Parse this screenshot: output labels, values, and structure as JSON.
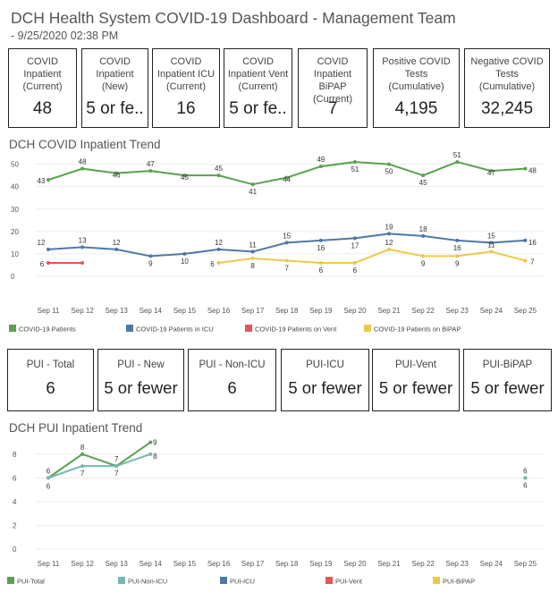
{
  "header": {
    "title": "DCH Health System COVID-19 Dashboard - Management Team",
    "subtitle": " - 9/25/2020 02:38 PM"
  },
  "kpis": [
    {
      "label": "COVID\nInpatient\n(Current)",
      "value": "48"
    },
    {
      "label": "COVID\nInpatient\n(New)",
      "value": "5 or fe.."
    },
    {
      "label": "COVID\nInpatient ICU\n(Current)",
      "value": "16"
    },
    {
      "label": "COVID\nInpatient Vent\n(Current)",
      "value": "5 or fe.."
    },
    {
      "label": "COVID\nInpatient BiPAP\n(Current)",
      "value": "7"
    },
    {
      "label": "Positive COVID\nTests\n(Cumulative)",
      "value": "4,195"
    },
    {
      "label": "Negative COVID\nTests\n(Cumulative)",
      "value": "32,245"
    }
  ],
  "pui_kpis": [
    {
      "label": "PUI - Total",
      "value": "6"
    },
    {
      "label": "PUI - New",
      "value": "5 or fewer"
    },
    {
      "label": "PUI - Non-ICU",
      "value": "6"
    },
    {
      "label": "PUI-ICU",
      "value": "5 or fewer"
    },
    {
      "label": "PUI-Vent",
      "value": "5 or fewer"
    },
    {
      "label": "PUI-BiPAP",
      "value": "5 or fewer"
    }
  ],
  "sections": {
    "covid_trend_title": "DCH COVID Inpatient Trend",
    "pui_trend_title": "DCH PUI Inpatient Trend"
  },
  "colors": {
    "green": "#59a14f",
    "blue": "#4e79a7",
    "red": "#e15759",
    "yellow": "#edc948",
    "teal": "#76b7b2"
  },
  "chart_data": [
    {
      "type": "line",
      "title": "DCH COVID Inpatient Trend",
      "categories": [
        "Sep 11",
        "Sep 12",
        "Sep 13",
        "Sep 14",
        "Sep 15",
        "Sep 16",
        "Sep 17",
        "Sep 18",
        "Sep 19",
        "Sep 20",
        "Sep 21",
        "Sep 22",
        "Sep 23",
        "Sep 24",
        "Sep 25"
      ],
      "yticks": [
        0,
        10,
        20,
        30,
        40,
        50
      ],
      "ylim": [
        0,
        52
      ],
      "series": [
        {
          "name": "COVID-19 Patients",
          "color": "#59a14f",
          "values": [
            43,
            48,
            46,
            47,
            45,
            45,
            41,
            44,
            49,
            51,
            50,
            45,
            51,
            47,
            48
          ],
          "labels": [
            43,
            48,
            46,
            47,
            45,
            45,
            41,
            44,
            49,
            51,
            50,
            45,
            51,
            47,
            48
          ]
        },
        {
          "name": "COVID-19 Patients in ICU",
          "color": "#4e79a7",
          "values": [
            12,
            13,
            12,
            9,
            10,
            12,
            11,
            15,
            16,
            17,
            19,
            18,
            16,
            15,
            16
          ],
          "labels": [
            12,
            13,
            12,
            9,
            10,
            12,
            11,
            15,
            16,
            17,
            19,
            18,
            16,
            15,
            16
          ]
        },
        {
          "name": "COVID-19 Patients on Vent",
          "color": "#e15759",
          "values": [
            6,
            6,
            null,
            null,
            null,
            null,
            null,
            null,
            null,
            null,
            null,
            null,
            null,
            null,
            null
          ],
          "labels": [
            6,
            null,
            null,
            null,
            null,
            null,
            null,
            null,
            null,
            null,
            null,
            null,
            null,
            null,
            null
          ]
        },
        {
          "name": "COVID-19 Patients on BiPAP",
          "color": "#edc948",
          "values": [
            null,
            null,
            null,
            null,
            null,
            6,
            8,
            7,
            6,
            6,
            12,
            9,
            9,
            11,
            7
          ],
          "labels": [
            null,
            null,
            null,
            null,
            null,
            6,
            8,
            7,
            6,
            6,
            12,
            9,
            9,
            11,
            7
          ]
        }
      ]
    },
    {
      "type": "line",
      "title": "DCH PUI Inpatient Trend",
      "categories": [
        "Sep 11",
        "Sep 12",
        "Sep 13",
        "Sep 14",
        "Sep 15",
        "Sep 16",
        "Sep 17",
        "Sep 18",
        "Sep 19",
        "Sep 20",
        "Sep 21",
        "Sep 22",
        "Sep 23",
        "Sep 24",
        "Sep 25"
      ],
      "yticks": [
        0,
        2,
        4,
        6,
        8
      ],
      "ylim": [
        0,
        9.4
      ],
      "series": [
        {
          "name": "PUI-Total",
          "color": "#59a14f",
          "values": [
            6,
            8,
            7,
            9,
            null,
            null,
            null,
            null,
            null,
            null,
            null,
            null,
            null,
            null,
            6
          ],
          "labels": [
            6,
            8,
            7,
            9,
            null,
            null,
            null,
            null,
            null,
            null,
            null,
            null,
            null,
            null,
            6
          ]
        },
        {
          "name": "PUI-Non-ICU",
          "color": "#76b7b2",
          "values": [
            6,
            7,
            7,
            8,
            null,
            null,
            null,
            null,
            null,
            null,
            null,
            null,
            null,
            null,
            6
          ],
          "labels": [
            6,
            7,
            7,
            8,
            null,
            null,
            null,
            null,
            null,
            null,
            null,
            null,
            null,
            null,
            6
          ]
        },
        {
          "name": "PUI-ICU",
          "color": "#4e79a7",
          "values": [
            null,
            null,
            null,
            null,
            null,
            null,
            null,
            null,
            null,
            null,
            null,
            null,
            null,
            null,
            null
          ],
          "labels": []
        },
        {
          "name": "PUI-Vent",
          "color": "#e15759",
          "values": [
            null,
            null,
            null,
            null,
            null,
            null,
            null,
            null,
            null,
            null,
            null,
            null,
            null,
            null,
            null
          ],
          "labels": []
        },
        {
          "name": "PUI-BiPAP",
          "color": "#edc948",
          "values": [
            null,
            null,
            null,
            null,
            null,
            null,
            null,
            null,
            null,
            null,
            null,
            null,
            null,
            null,
            null
          ],
          "labels": []
        }
      ]
    }
  ]
}
